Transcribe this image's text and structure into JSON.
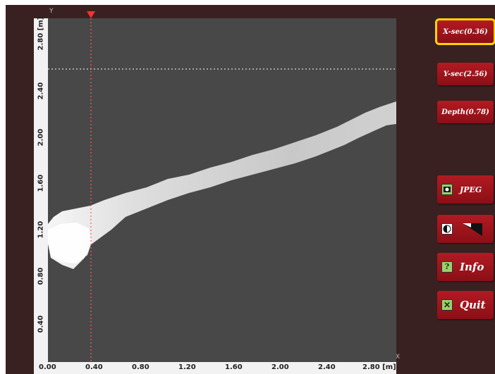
{
  "buttons": {
    "x_sec": "X-sec(0.36)",
    "y_sec": "Y-sec(2.56)",
    "depth": "Depth(0.78)",
    "jpeg": "JPEG",
    "info": "Info",
    "quit": "Quit"
  },
  "axes": {
    "x_tag": "X",
    "y_tag": "Y",
    "x_ticks": [
      "0.00",
      "0.40",
      "0.80",
      "1.20",
      "1.60",
      "2.00",
      "2.40",
      "2.80 [m]"
    ],
    "y_ticks": [
      "0.40",
      "0.80",
      "1.20",
      "1.60",
      "2.00",
      "2.40",
      "2.80 [m]"
    ]
  },
  "cursor": {
    "x_section": 0.36,
    "y_section": 2.56
  },
  "colors": {
    "button": "#9e141c",
    "selected_outline": "#ffd400",
    "plot_bg": "#484848",
    "cursor": "#ff5a5a"
  }
}
